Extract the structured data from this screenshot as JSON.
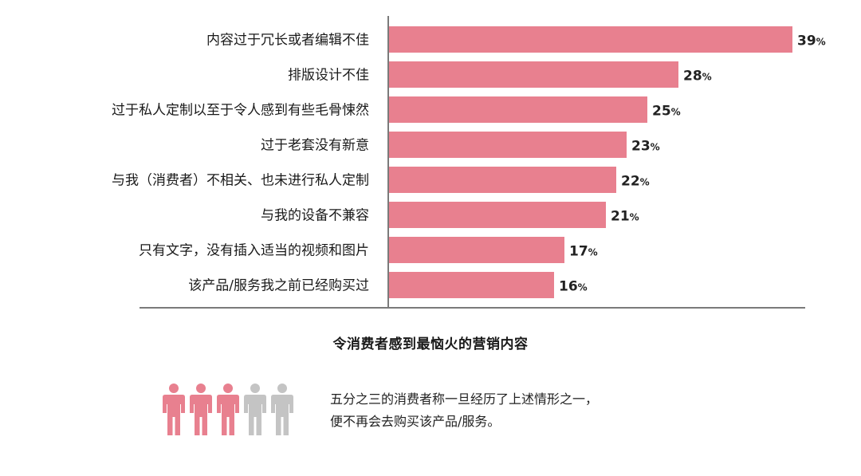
{
  "chart_data": {
    "type": "bar",
    "orientation": "horizontal",
    "title": "令消费者感到最恼火的营销内容",
    "categories": [
      "内容过于冗长或者编辑不佳",
      "排版设计不佳",
      "过于私人定制以至于令人感到有些毛骨悚然",
      "过于老套没有新意",
      "与我（消费者）不相关、也未进行私人定制",
      "与我的设备不兼容",
      "只有文字，没有插入适当的视频和图片",
      "该产品/服务我之前已经购买过"
    ],
    "values": [
      39,
      28,
      25,
      23,
      22,
      21,
      17,
      16
    ],
    "value_suffix": "%",
    "bar_color": "#e8808f",
    "axis_color": "#7a7a7a",
    "xlim": [
      0,
      40
    ]
  },
  "note": {
    "line1": "五分之三的消费者称一旦经历了上述情形之一，",
    "line2": "便不再会去购买该产品/服务。"
  },
  "people_icons": {
    "icon": "person-icon",
    "highlighted_count": 3,
    "total": 5,
    "highlight_color": "#e8808f",
    "muted_color": "#c4c4c4"
  }
}
